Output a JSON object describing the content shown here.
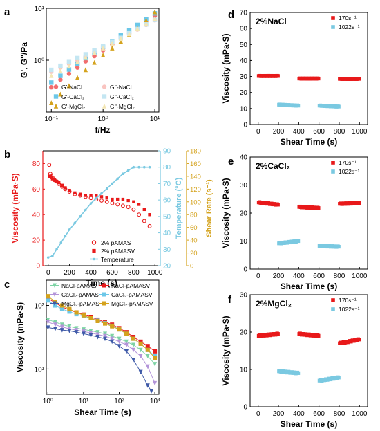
{
  "chart_data": [
    {
      "panel": "a",
      "type": "scatter",
      "xlabel": "f/Hz",
      "ylabel": "G', G''/Pa",
      "xscale": "log",
      "yscale": "log",
      "xlim": [
        0.08,
        12
      ],
      "ylim": [
        0.1,
        10
      ],
      "x_ticks": [
        "10⁻¹",
        "10⁰",
        "10¹"
      ],
      "y_ticks": [
        "10⁰",
        "10¹"
      ],
      "legend": "bottom-right",
      "series": [
        {
          "name": "G'-NaCl",
          "marker": "circle",
          "color": "#f26d6d",
          "x": [
            0.1,
            0.15,
            0.22,
            0.32,
            0.46,
            0.68,
            1,
            1.5,
            2.2,
            3.2,
            4.6,
            6.8,
            10
          ],
          "y": [
            0.3,
            0.42,
            0.55,
            0.72,
            0.95,
            1.2,
            1.55,
            2,
            2.6,
            3.3,
            4.3,
            5.6,
            7.2
          ]
        },
        {
          "name": "G'-CaCl₂",
          "marker": "square",
          "color": "#6cc7e8",
          "x": [
            0.1,
            0.15,
            0.22,
            0.32,
            0.46,
            0.68,
            1,
            1.5,
            2.2,
            3.2,
            4.6,
            6.8,
            10
          ],
          "y": [
            0.37,
            0.5,
            0.66,
            0.86,
            1.1,
            1.4,
            1.8,
            2.3,
            3,
            3.8,
            4.8,
            6.2,
            8
          ]
        },
        {
          "name": "G'-MgCl₂",
          "marker": "triangle",
          "color": "#d4a21c",
          "x": [
            0.1,
            0.15,
            0.22,
            0.32,
            0.46,
            0.68,
            1,
            1.5,
            2.2,
            3.2,
            4.6,
            6.8,
            10
          ],
          "y": [
            0.15,
            0.22,
            0.32,
            0.46,
            0.65,
            0.9,
            1.25,
            1.7,
            2.3,
            3.1,
            4.2,
            5.8,
            8.5
          ]
        },
        {
          "name": "G''-NaCl",
          "marker": "circle",
          "color": "#f9c4c0",
          "x": [
            0.1,
            0.15,
            0.22,
            0.32,
            0.46,
            0.68,
            1,
            1.5,
            2.2,
            3.2,
            4.6,
            6.8,
            10
          ],
          "y": [
            0.6,
            0.72,
            0.85,
            1,
            1.2,
            1.45,
            1.75,
            2.15,
            2.6,
            3.2,
            3.9,
            4.8,
            5.9
          ]
        },
        {
          "name": "G''-CaCl₂",
          "marker": "square",
          "color": "#c4e6f2",
          "x": [
            0.1,
            0.15,
            0.22,
            0.32,
            0.46,
            0.68,
            1,
            1.5,
            2.2,
            3.2,
            4.6,
            6.8,
            10
          ],
          "y": [
            0.65,
            0.78,
            0.92,
            1.1,
            1.3,
            1.55,
            1.85,
            2.25,
            2.7,
            3.3,
            4,
            4.9,
            6
          ]
        },
        {
          "name": "G''-MgCl₂",
          "marker": "triangle",
          "color": "#f3e6b4",
          "x": [
            0.1,
            0.15,
            0.22,
            0.32,
            0.46,
            0.68,
            1,
            1.5,
            2.2,
            3.2,
            4.6,
            6.8,
            10
          ],
          "y": [
            0.5,
            0.62,
            0.76,
            0.92,
            1.12,
            1.38,
            1.7,
            2.1,
            2.6,
            3.2,
            4,
            5,
            6.3
          ]
        }
      ]
    },
    {
      "panel": "b",
      "type": "scatter",
      "xlabel": "Time (s)",
      "ylabel": "Viscosity (mPa·S)",
      "y2label": "Temperature (°C)",
      "y3label": "Shear Rate (s⁻¹)",
      "xlim": [
        -50,
        1050
      ],
      "ylim": [
        0,
        90
      ],
      "y2lim": [
        20,
        90
      ],
      "y3lim": [
        0,
        180
      ],
      "x_ticks": [
        0,
        200,
        400,
        600,
        800,
        1000
      ],
      "y_ticks": [
        0,
        20,
        40,
        60,
        80
      ],
      "y2_ticks": [
        20,
        30,
        40,
        50,
        60,
        70,
        80,
        90
      ],
      "y3_ticks": [
        0,
        20,
        40,
        60,
        80,
        100,
        120,
        140,
        160,
        180
      ],
      "legend": "bottom-right",
      "series": [
        {
          "name": "2% pAMAS",
          "axis": "left",
          "marker": "open-circle",
          "color": "#e8191a",
          "x": [
            10,
            20,
            30,
            40,
            60,
            80,
            100,
            130,
            160,
            200,
            250,
            300,
            350,
            400,
            450,
            500,
            550,
            600,
            650,
            700,
            750,
            800,
            850,
            900,
            950
          ],
          "y": [
            79,
            72,
            70,
            69,
            67,
            66,
            64,
            62,
            60,
            58,
            56,
            55,
            54,
            53,
            52,
            51,
            50,
            49,
            48,
            47,
            46,
            44,
            40,
            35,
            31
          ]
        },
        {
          "name": "2% pAMASV",
          "axis": "left",
          "marker": "square",
          "color": "#e8191a",
          "x": [
            10,
            20,
            30,
            40,
            60,
            80,
            100,
            130,
            160,
            200,
            250,
            300,
            350,
            400,
            450,
            500,
            550,
            600,
            650,
            700,
            750,
            800,
            850,
            900,
            950
          ],
          "y": [
            70,
            70,
            69,
            68,
            67,
            66,
            65,
            63,
            61,
            59,
            57,
            56,
            55,
            55,
            55,
            54,
            53,
            52,
            52,
            52,
            51,
            50,
            48,
            44,
            40
          ]
        },
        {
          "name": "Temperature",
          "axis": "right",
          "marker": "line-dot",
          "color": "#7ac9e1",
          "x": [
            0,
            40,
            80,
            120,
            160,
            200,
            250,
            300,
            350,
            400,
            450,
            500,
            550,
            600,
            650,
            700,
            750,
            800,
            850,
            900,
            950
          ],
          "y": [
            25,
            26,
            30,
            34,
            38,
            42,
            46,
            50,
            54,
            58,
            61,
            64,
            67,
            70,
            73,
            76,
            78,
            80,
            80,
            80,
            80
          ]
        }
      ]
    },
    {
      "panel": "c",
      "type": "scatter",
      "xlabel": "Shear Time (s)",
      "ylabel": "Viscosity (mPa·S)",
      "xscale": "log",
      "yscale": "log",
      "xlim": [
        0.9,
        1300
      ],
      "ylim": [
        4,
        250
      ],
      "x_ticks": [
        "10⁰",
        "10¹",
        "10²",
        "10³"
      ],
      "y_ticks": [
        "10¹",
        "10²"
      ],
      "legend": "top",
      "series": [
        {
          "name": "NaCl-pAMAS",
          "marker": "triangle-down",
          "color": "#7dd3a4",
          "x": [
            1,
            1.6,
            2.5,
            4,
            6.3,
            10,
            16,
            25,
            40,
            63,
            100,
            160,
            250,
            400,
            630,
            1000
          ],
          "y": [
            60,
            55,
            50,
            47,
            44,
            42,
            40,
            38,
            36,
            33,
            30,
            27,
            24,
            20,
            16,
            12
          ]
        },
        {
          "name": "NaCl-pAMASV",
          "marker": "square",
          "color": "#e8191a",
          "x": [
            1,
            1.6,
            2.5,
            4,
            6.3,
            10,
            16,
            25,
            40,
            63,
            100,
            160,
            250,
            400,
            630,
            1000
          ],
          "y": [
            130,
            110,
            95,
            85,
            78,
            72,
            66,
            60,
            55,
            50,
            44,
            38,
            32,
            27,
            23,
            19
          ]
        },
        {
          "name": "CaCl₂-pAMAS",
          "marker": "triangle-down",
          "color": "#b394d9",
          "x": [
            1,
            1.6,
            2.5,
            4,
            6.3,
            10,
            16,
            25,
            40,
            63,
            100,
            160,
            250,
            400,
            630,
            1000
          ],
          "y": [
            55,
            50,
            46,
            43,
            41,
            39,
            37,
            35,
            33,
            30,
            27,
            24,
            20,
            16,
            11,
            6
          ]
        },
        {
          "name": "CaCl₂-pAMASV",
          "marker": "square",
          "color": "#6cc7e8",
          "x": [
            1,
            1.6,
            2.5,
            4,
            6.3,
            10,
            16,
            25,
            40,
            63,
            100,
            160,
            250,
            400,
            630,
            1000
          ],
          "y": [
            120,
            100,
            88,
            80,
            73,
            68,
            63,
            58,
            53,
            48,
            42,
            36,
            30,
            25,
            20,
            16
          ]
        },
        {
          "name": "MgCl₂-pAMAS",
          "marker": "triangle-down",
          "color": "#3f5aa8",
          "x": [
            1,
            1.6,
            2.5,
            4,
            6.3,
            10,
            16,
            25,
            40,
            63,
            100,
            160,
            250,
            400,
            630,
            800
          ],
          "y": [
            45,
            43,
            41,
            40,
            38,
            36,
            34,
            32,
            30,
            27,
            23,
            19,
            14,
            9,
            5.5,
            4.5
          ]
        },
        {
          "name": "MgCl₂-pAMASV",
          "marker": "square",
          "color": "#d4a21c",
          "x": [
            1,
            1.6,
            2.5,
            4,
            6.3,
            10,
            16,
            25,
            40,
            63,
            100,
            160,
            250,
            400,
            630,
            1000
          ],
          "y": [
            140,
            115,
            100,
            88,
            78,
            70,
            63,
            57,
            52,
            47,
            42,
            36,
            30,
            25,
            20,
            15
          ]
        }
      ]
    },
    {
      "panel": "d",
      "type": "scatter",
      "annotation": "2%NaCl",
      "xlabel": "Shear Time (s)",
      "ylabel": "Viscosity (mPa·S)",
      "xlim": [
        -80,
        1080
      ],
      "ylim": [
        0,
        70
      ],
      "x_ticks": [
        0,
        200,
        400,
        600,
        800,
        1000
      ],
      "y_ticks": [
        0,
        10,
        20,
        30,
        40,
        50,
        60,
        70
      ],
      "legend": "top-right",
      "series": [
        {
          "name": "170s⁻¹",
          "color": "#e8191a",
          "segments": [
            {
              "x0": 5,
              "x1": 195,
              "y": 30.3
            },
            {
              "x0": 405,
              "x1": 595,
              "y": 28.7
            },
            {
              "x0": 805,
              "x1": 995,
              "y": 28.5
            }
          ]
        },
        {
          "name": "1022s⁻¹",
          "color": "#7ac9e1",
          "segments": [
            {
              "x0": 205,
              "x1": 395,
              "y0": 12.4,
              "y1": 11.8
            },
            {
              "x0": 605,
              "x1": 795,
              "y0": 11.8,
              "y1": 11.2
            }
          ]
        }
      ]
    },
    {
      "panel": "e",
      "type": "scatter",
      "annotation": "2%CaCl₂",
      "xlabel": "Shear Time (s)",
      "ylabel": "Viscosity (mPa·S)",
      "xlim": [
        -80,
        1080
      ],
      "ylim": [
        0,
        40
      ],
      "x_ticks": [
        0,
        200,
        400,
        600,
        800,
        1000
      ],
      "y_ticks": [
        0,
        10,
        20,
        30,
        40
      ],
      "legend": "top-right",
      "series": [
        {
          "name": "170s⁻¹",
          "color": "#e8191a",
          "segments": [
            {
              "x0": 5,
              "x1": 195,
              "y0": 23.8,
              "y1": 23
            },
            {
              "x0": 405,
              "x1": 595,
              "y0": 22.2,
              "y1": 21.8
            },
            {
              "x0": 805,
              "x1": 995,
              "y0": 23.3,
              "y1": 23.6
            }
          ]
        },
        {
          "name": "1022s⁻¹",
          "color": "#7ac9e1",
          "segments": [
            {
              "x0": 205,
              "x1": 395,
              "y0": 9.2,
              "y1": 10
            },
            {
              "x0": 605,
              "x1": 795,
              "y0": 8.3,
              "y1": 8
            }
          ]
        }
      ]
    },
    {
      "panel": "f",
      "type": "scatter",
      "annotation": "2%MgCl₂",
      "xlabel": "Shear Time (s)",
      "ylabel": "Viscosity (mPa·S)",
      "xlim": [
        -80,
        1080
      ],
      "ylim": [
        0,
        30
      ],
      "x_ticks": [
        0,
        200,
        400,
        600,
        800,
        1000
      ],
      "y_ticks": [
        0,
        10,
        20,
        30
      ],
      "legend": "top-right",
      "series": [
        {
          "name": "170s⁻¹",
          "color": "#e8191a",
          "segments": [
            {
              "x0": 5,
              "x1": 195,
              "y0": 19,
              "y1": 19.5
            },
            {
              "x0": 405,
              "x1": 595,
              "y0": 19.5,
              "y1": 19
            },
            {
              "x0": 805,
              "x1": 995,
              "y0": 17,
              "y1": 18
            }
          ]
        },
        {
          "name": "1022s⁻¹",
          "color": "#7ac9e1",
          "segments": [
            {
              "x0": 205,
              "x1": 395,
              "y0": 9.5,
              "y1": 9
            },
            {
              "x0": 605,
              "x1": 795,
              "y0": 7,
              "y1": 7.8
            }
          ]
        }
      ]
    }
  ]
}
